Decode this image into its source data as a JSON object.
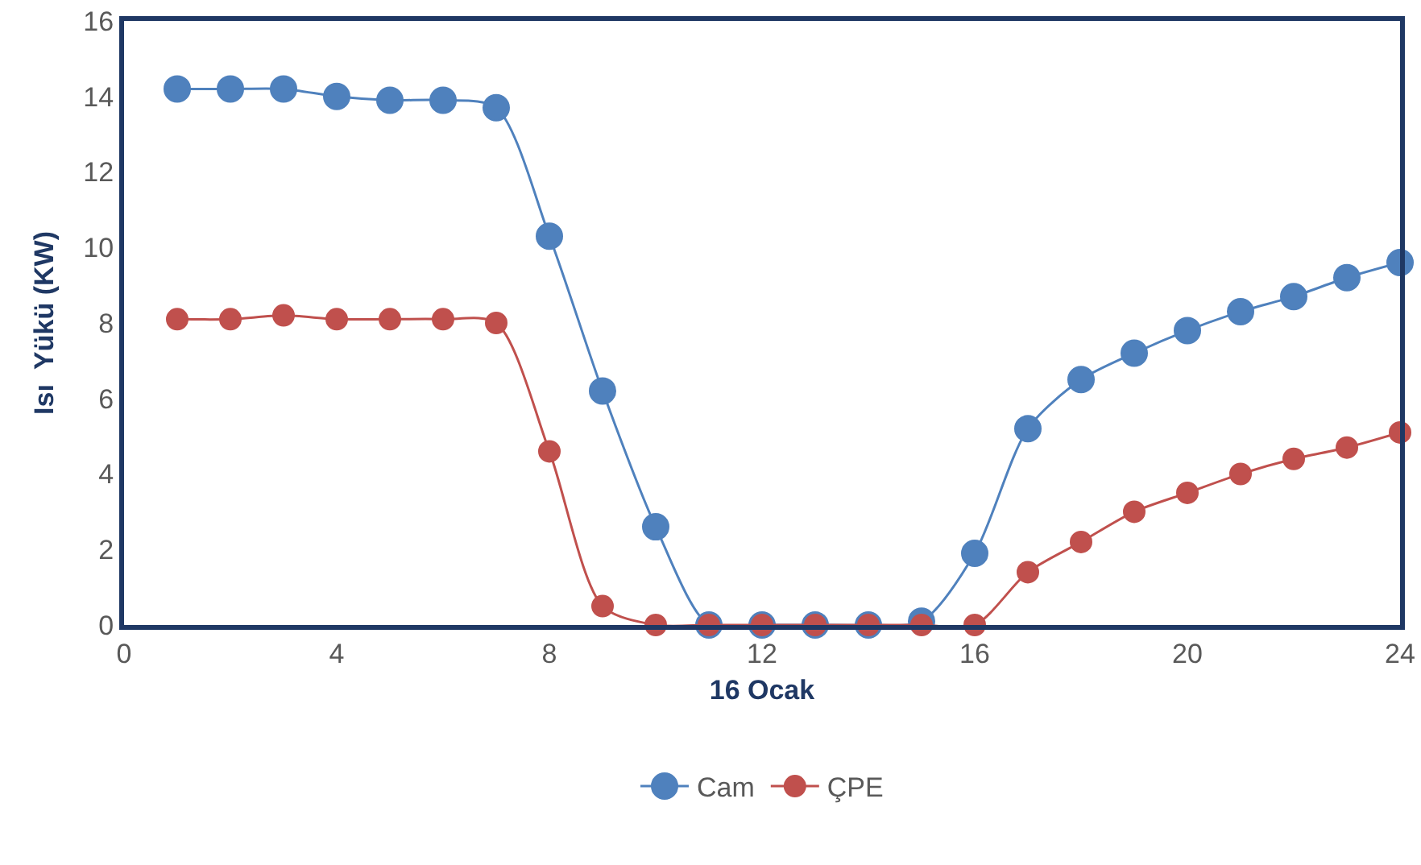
{
  "chart_data": {
    "type": "line",
    "xlabel": "16 Ocak",
    "ylabel": "Isı  Yükü (KW)",
    "x": [
      1,
      2,
      3,
      4,
      5,
      6,
      7,
      8,
      9,
      10,
      11,
      12,
      13,
      14,
      15,
      16,
      17,
      18,
      19,
      20,
      21,
      22,
      23,
      24
    ],
    "series": [
      {
        "name": "Cam",
        "color": "#4f81bd",
        "values": [
          14.2,
          14.2,
          14.2,
          14.0,
          13.9,
          13.9,
          13.7,
          10.3,
          6.2,
          2.6,
          0,
          0,
          0,
          0,
          0.1,
          1.9,
          5.2,
          6.5,
          7.2,
          7.8,
          8.3,
          8.7,
          9.2,
          9.6
        ]
      },
      {
        "name": "ÇPE",
        "color": "#c0504d",
        "values": [
          8.1,
          8.1,
          8.2,
          8.1,
          8.1,
          8.1,
          8.0,
          4.6,
          0.5,
          0,
          0,
          0,
          0,
          0,
          0,
          0,
          1.4,
          2.2,
          3.0,
          3.5,
          4.0,
          4.4,
          4.7,
          5.1
        ]
      }
    ],
    "xlim": [
      0,
      24
    ],
    "xticks": [
      0,
      4,
      8,
      12,
      16,
      20,
      24
    ],
    "ylim": [
      0,
      16
    ],
    "yticks": [
      0,
      2,
      4,
      6,
      8,
      10,
      12,
      14,
      16
    ],
    "grid": false,
    "legend": "bottom",
    "marker": "circle",
    "line_style": "solid"
  }
}
